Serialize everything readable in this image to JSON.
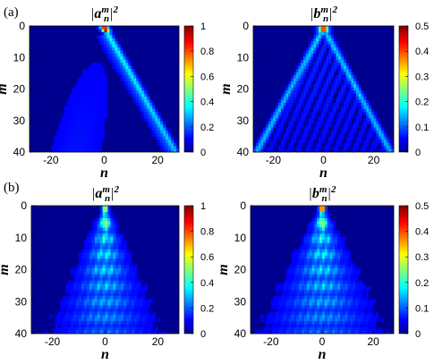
{
  "panel_labels": [
    "(a)",
    "(b)"
  ],
  "chart_data": [
    {
      "type": "heatmap",
      "panel": "(a)",
      "title": "|a_n^m|^2",
      "title_parts": {
        "base": "a",
        "sub": "n",
        "sup": "m",
        "power": "2"
      },
      "xlabel": "n",
      "ylabel": "m",
      "xlim": [
        -28,
        28
      ],
      "ylim": [
        0,
        40
      ],
      "x_ticks": [
        "-20",
        "0",
        "20"
      ],
      "x_tick_values": [
        -20,
        0,
        20
      ],
      "y_ticks": [
        "0",
        "10",
        "20",
        "30",
        "40"
      ],
      "y_tick_values": [
        0,
        10,
        20,
        30,
        40
      ],
      "colorbar": {
        "min": 0,
        "max": 1,
        "ticks": [
          "0",
          "0.2",
          "0.4",
          "0.6",
          "0.8",
          "1"
        ],
        "tick_values": [
          0,
          0.2,
          0.4,
          0.6,
          0.8,
          1
        ]
      },
      "colormap": "jet",
      "pattern": "ballistic-beam",
      "peak": {
        "n": 0,
        "m": 0,
        "value": 0.95
      },
      "beam_slope_n_per_m": 0.66
    },
    {
      "type": "heatmap",
      "panel": "(a)",
      "title": "|b_n^m|^2",
      "title_parts": {
        "base": "b",
        "sub": "n",
        "sup": "m",
        "power": "2"
      },
      "xlabel": "n",
      "ylabel": "m",
      "xlim": [
        -28,
        28
      ],
      "ylim": [
        0,
        40
      ],
      "x_ticks": [
        "-20",
        "0",
        "20"
      ],
      "x_tick_values": [
        -20,
        0,
        20
      ],
      "y_ticks": [
        "0",
        "10",
        "20",
        "30",
        "40"
      ],
      "y_tick_values": [
        0,
        10,
        20,
        30,
        40
      ],
      "colorbar": {
        "min": 0,
        "max": 0.5,
        "ticks": [
          "0",
          "0.1",
          "0.2",
          "0.3",
          "0.4",
          "0.5"
        ],
        "tick_values": [
          0,
          0.1,
          0.2,
          0.3,
          0.4,
          0.5
        ]
      },
      "colormap": "jet",
      "pattern": "light-cone",
      "peak": {
        "n": 0,
        "m": 0,
        "value": 0.42
      },
      "cone_slope_n_per_m": 0.66
    },
    {
      "type": "heatmap",
      "panel": "(b)",
      "title": "|a_n^m|^2",
      "title_parts": {
        "base": "a",
        "sub": "n",
        "sup": "m",
        "power": "2"
      },
      "xlabel": "n",
      "ylabel": "m",
      "xlim": [
        -28,
        28
      ],
      "ylim": [
        0,
        40
      ],
      "x_ticks": [
        "-20",
        "0",
        "20"
      ],
      "x_tick_values": [
        -20,
        0,
        20
      ],
      "y_ticks": [
        "0",
        "10",
        "20",
        "30",
        "40"
      ],
      "y_tick_values": [
        0,
        10,
        20,
        30,
        40
      ],
      "colorbar": {
        "min": 0,
        "max": 1,
        "ticks": [
          "0",
          "0.2",
          "0.4",
          "0.6",
          "0.8",
          "1"
        ],
        "tick_values": [
          0,
          0.2,
          0.4,
          0.6,
          0.8,
          1
        ]
      },
      "colormap": "jet",
      "pattern": "localized-spread",
      "peak": {
        "n": 0,
        "m": 0,
        "value": 0.55
      },
      "spread_slope_n_per_m": 0.22
    },
    {
      "type": "heatmap",
      "panel": "(b)",
      "title": "|b_n^m|^2",
      "title_parts": {
        "base": "b",
        "sub": "n",
        "sup": "m",
        "power": "2"
      },
      "xlabel": "n",
      "ylabel": "m",
      "xlim": [
        -28,
        28
      ],
      "ylim": [
        0,
        40
      ],
      "x_ticks": [
        "-20",
        "0",
        "20"
      ],
      "x_tick_values": [
        -20,
        0,
        20
      ],
      "y_ticks": [
        "0",
        "10",
        "20",
        "30",
        "40"
      ],
      "y_tick_values": [
        0,
        10,
        20,
        30,
        40
      ],
      "colorbar": {
        "min": 0,
        "max": 0.5,
        "ticks": [
          "0",
          "0.1",
          "0.2",
          "0.3",
          "0.4",
          "0.5"
        ],
        "tick_values": [
          0,
          0.1,
          0.2,
          0.3,
          0.4,
          0.5
        ]
      },
      "colormap": "jet",
      "pattern": "localized-spread",
      "peak": {
        "n": 0,
        "m": 0,
        "value": 0.45
      },
      "spread_slope_n_per_m": 0.26
    }
  ]
}
